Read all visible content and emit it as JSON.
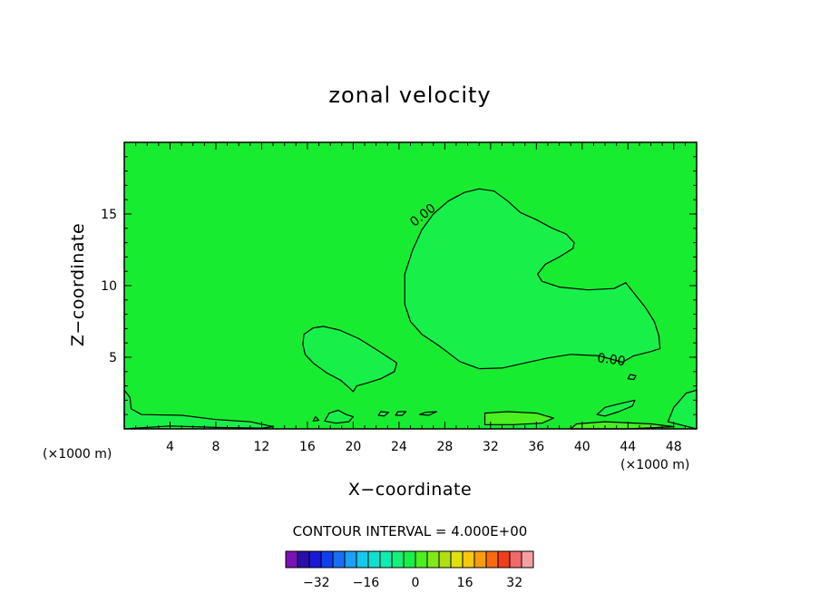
{
  "chart_data": {
    "type": "contour",
    "title": "zonal velocity",
    "xlabel": "X−coordinate",
    "ylabel": "Z−coordinate",
    "x_unit": "(×1000 m)",
    "y_unit": "(×1000 m)",
    "xlim": [
      0,
      50
    ],
    "ylim": [
      0,
      20
    ],
    "x_ticks": [
      4,
      8,
      12,
      16,
      20,
      24,
      28,
      32,
      36,
      40,
      44,
      48
    ],
    "y_ticks": [
      5,
      10,
      15
    ],
    "contour_interval_text": "CONTOUR INTERVAL = 4.000E+00",
    "contour_label": "0.00",
    "colorbar": {
      "ticks": [
        -32,
        -16,
        0,
        16,
        32
      ],
      "tick_labels": [
        "−32",
        "−16",
        "0",
        "16",
        "32"
      ],
      "levels": [
        -40,
        -36,
        -32,
        -28,
        -24,
        -20,
        -16,
        -12,
        -8,
        -4,
        0,
        4,
        8,
        12,
        16,
        20,
        24,
        28,
        32,
        36,
        40
      ],
      "colors": [
        "#7a12b8",
        "#2a10a8",
        "#1a1ad6",
        "#1040ee",
        "#1a6ef4",
        "#1aa0f4",
        "#14c8ee",
        "#10e0d0",
        "#10ecb0",
        "#14f07a",
        "#18f04a",
        "#4af020",
        "#82ea18",
        "#b0e014",
        "#e0e010",
        "#f8c810",
        "#f89c10",
        "#f86a10",
        "#f23c1c",
        "#f06a6a",
        "#f5a0a0"
      ]
    },
    "background_value_color": "#18ec30",
    "regions": [
      {
        "name": "positive-lobe",
        "color": "#18f04a",
        "label_value": 0,
        "points": [
          [
            24.5,
            10.8
          ],
          [
            25.2,
            12.5
          ],
          [
            26.0,
            13.9
          ],
          [
            27.0,
            15.0
          ],
          [
            28.3,
            15.9
          ],
          [
            29.7,
            16.5
          ],
          [
            31.0,
            16.75
          ],
          [
            32.3,
            16.6
          ],
          [
            33.5,
            15.9
          ],
          [
            34.6,
            15.1
          ],
          [
            36.0,
            14.6
          ],
          [
            37.4,
            14.0
          ],
          [
            38.6,
            13.6
          ],
          [
            39.3,
            13.0
          ],
          [
            39.2,
            12.6
          ],
          [
            38.0,
            12.0
          ],
          [
            36.8,
            11.5
          ],
          [
            36.1,
            10.8
          ],
          [
            36.5,
            10.3
          ],
          [
            38.0,
            9.9
          ],
          [
            40.5,
            9.7
          ],
          [
            42.8,
            9.8
          ],
          [
            43.8,
            10.2
          ],
          [
            44.5,
            9.5
          ],
          [
            45.5,
            8.5
          ],
          [
            46.3,
            7.5
          ],
          [
            46.7,
            6.5
          ],
          [
            46.8,
            5.6
          ],
          [
            46.0,
            5.4
          ],
          [
            44.5,
            5.1
          ],
          [
            43.5,
            4.65
          ],
          [
            41.5,
            5.1
          ],
          [
            39.0,
            5.2
          ],
          [
            37.0,
            4.95
          ],
          [
            35.0,
            4.6
          ],
          [
            33.0,
            4.25
          ],
          [
            31.0,
            4.2
          ],
          [
            29.3,
            4.7
          ],
          [
            27.5,
            5.8
          ],
          [
            26.0,
            6.6
          ],
          [
            25.0,
            7.5
          ],
          [
            24.5,
            8.7
          ],
          [
            24.5,
            10.8
          ]
        ]
      },
      {
        "name": "left-lobe",
        "color": "#18f04a",
        "points": [
          [
            15.6,
            5.9
          ],
          [
            15.7,
            6.6
          ],
          [
            16.5,
            7.05
          ],
          [
            17.4,
            7.15
          ],
          [
            18.8,
            6.9
          ],
          [
            20.5,
            6.3
          ],
          [
            22.3,
            5.4
          ],
          [
            23.8,
            4.6
          ],
          [
            23.6,
            4.0
          ],
          [
            22.4,
            3.5
          ],
          [
            21.2,
            3.2
          ],
          [
            20.3,
            3.0
          ],
          [
            20.0,
            2.6
          ],
          [
            19.6,
            2.9
          ],
          [
            18.9,
            3.4
          ],
          [
            17.7,
            3.9
          ],
          [
            16.5,
            4.6
          ],
          [
            15.8,
            5.2
          ],
          [
            15.6,
            5.9
          ]
        ]
      },
      {
        "name": "small-cell-right",
        "color": "#18f04a",
        "points": [
          [
            41.3,
            1.0
          ],
          [
            42.0,
            1.5
          ],
          [
            43.5,
            1.8
          ],
          [
            44.6,
            2.0
          ],
          [
            44.4,
            1.6
          ],
          [
            43.2,
            1.2
          ],
          [
            42.0,
            0.9
          ],
          [
            41.3,
            1.0
          ]
        ]
      },
      {
        "name": "low-shelf-left",
        "color": "#18f04a",
        "points": [
          [
            0.0,
            0.0
          ],
          [
            0.0,
            2.7
          ],
          [
            0.5,
            2.2
          ],
          [
            0.6,
            1.4
          ],
          [
            1.5,
            1.0
          ],
          [
            5.0,
            0.95
          ],
          [
            8.0,
            0.65
          ],
          [
            10.0,
            0.55
          ],
          [
            11.0,
            0.5
          ],
          [
            13.0,
            0.15
          ],
          [
            12.0,
            0.05
          ],
          [
            8.0,
            0.1
          ],
          [
            4.0,
            0.2
          ],
          [
            0.0,
            0.0
          ]
        ]
      },
      {
        "name": "low-shelf-right",
        "color": "#18f04a",
        "points": [
          [
            50.0,
            0.0
          ],
          [
            49.0,
            0.2
          ],
          [
            47.5,
            0.5
          ],
          [
            48.0,
            1.5
          ],
          [
            49.1,
            2.5
          ],
          [
            50.0,
            2.7
          ],
          [
            50.0,
            0.0
          ]
        ]
      },
      {
        "name": "surface-cell-center",
        "color": "#4af020",
        "points": [
          [
            31.5,
            0.3
          ],
          [
            31.5,
            1.1
          ],
          [
            33.5,
            1.2
          ],
          [
            36.0,
            1.1
          ],
          [
            37.5,
            0.75
          ],
          [
            36.5,
            0.4
          ],
          [
            34.0,
            0.3
          ],
          [
            31.5,
            0.3
          ]
        ]
      },
      {
        "name": "surface-cell-right",
        "color": "#4af020",
        "points": [
          [
            39.0,
            0.0
          ],
          [
            39.5,
            0.35
          ],
          [
            42.0,
            0.5
          ],
          [
            46.0,
            0.35
          ],
          [
            48.0,
            0.15
          ],
          [
            44.0,
            0.0
          ],
          [
            39.0,
            0.0
          ]
        ]
      },
      {
        "name": "blob-1",
        "color": "#18f04a",
        "points": [
          [
            17.5,
            0.55
          ],
          [
            17.9,
            1.1
          ],
          [
            18.7,
            1.3
          ],
          [
            19.4,
            1.0
          ],
          [
            20.0,
            0.85
          ],
          [
            19.6,
            0.5
          ],
          [
            18.5,
            0.4
          ],
          [
            17.5,
            0.55
          ]
        ]
      },
      {
        "name": "blob-2",
        "color": "#18f04a",
        "points": [
          [
            22.2,
            0.95
          ],
          [
            22.4,
            1.2
          ],
          [
            23.1,
            1.15
          ],
          [
            22.7,
            0.9
          ],
          [
            22.2,
            0.95
          ]
        ]
      },
      {
        "name": "blob-3",
        "color": "#18f04a",
        "points": [
          [
            23.7,
            0.95
          ],
          [
            23.9,
            1.2
          ],
          [
            24.6,
            1.2
          ],
          [
            24.3,
            0.95
          ],
          [
            23.7,
            0.95
          ]
        ]
      },
      {
        "name": "blob-4",
        "color": "#18f04a",
        "points": [
          [
            25.8,
            1.0
          ],
          [
            26.3,
            1.15
          ],
          [
            27.3,
            1.2
          ],
          [
            26.6,
            0.95
          ],
          [
            25.8,
            1.0
          ]
        ]
      },
      {
        "name": "blob-5",
        "color": "#18f04a",
        "points": [
          [
            16.5,
            0.55
          ],
          [
            16.7,
            0.85
          ],
          [
            17.0,
            0.6
          ],
          [
            16.5,
            0.55
          ]
        ]
      },
      {
        "name": "blob-6",
        "color": "#18f04a",
        "points": [
          [
            44.0,
            3.5
          ],
          [
            44.2,
            3.8
          ],
          [
            44.7,
            3.7
          ],
          [
            44.5,
            3.45
          ],
          [
            44.0,
            3.5
          ]
        ]
      }
    ],
    "contour_label_positions": [
      [
        26.3,
        14.7
      ],
      [
        42.5,
        4.55
      ]
    ]
  }
}
